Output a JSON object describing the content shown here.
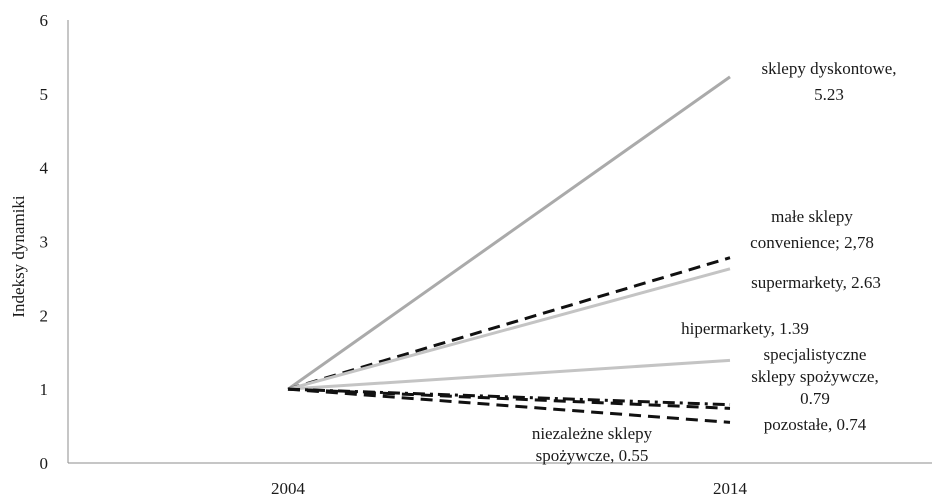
{
  "chart_data": {
    "type": "line",
    "title": "",
    "xlabel": "",
    "ylabel": "Indeksy dynamiki",
    "x": [
      "2004",
      "2014"
    ],
    "ylim": [
      0,
      6
    ],
    "yticks": [
      "0",
      "1",
      "2",
      "3",
      "4",
      "5",
      "6"
    ],
    "grid": false,
    "legend": "none",
    "series": [
      {
        "values": [
          1,
          5.23
        ],
        "color": "#aaaaaa",
        "dash": "solid",
        "label_lines": [
          "sklepy dyskontowe,",
          "5.23"
        ]
      },
      {
        "values": [
          1,
          2.78
        ],
        "color": "#111111",
        "dash": "dashed",
        "label_lines": [
          "małe sklepy",
          "convenience; 2,78"
        ]
      },
      {
        "values": [
          1,
          2.63
        ],
        "color": "#c4c4c4",
        "dash": "solid",
        "label_lines": [
          "supermarkety, 2.63"
        ]
      },
      {
        "values": [
          1,
          1.39
        ],
        "color": "#c4c4c4",
        "dash": "solid",
        "label_lines": [
          "hipermarkety, 1.39"
        ]
      },
      {
        "values": [
          1,
          0.79
        ],
        "color": "#111111",
        "dash": "dashdot",
        "label_lines": [
          "specjalistyczne",
          "sklepy spożywcze,",
          "0.79"
        ]
      },
      {
        "values": [
          1,
          0.74
        ],
        "color": "#111111",
        "dash": "dashed",
        "label_lines": [
          "pozostałe, 0.74"
        ]
      },
      {
        "values": [
          1,
          0.55
        ],
        "color": "#111111",
        "dash": "dashed",
        "label_lines": [
          "niezależne sklepy",
          "spożywcze, 0.55"
        ]
      }
    ]
  }
}
